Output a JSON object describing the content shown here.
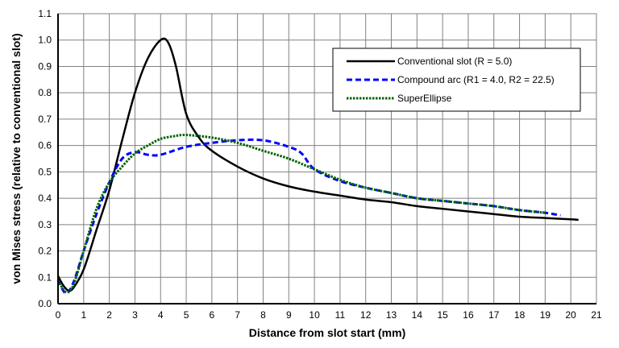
{
  "chart_data": {
    "type": "line",
    "title": "",
    "xlabel": "Distance from slot start (mm)",
    "ylabel": "von Mises stress (relative to conventional slot)",
    "xlim": [
      0,
      21
    ],
    "ylim": [
      0,
      1.1
    ],
    "xticks": [
      "0",
      "1",
      "2",
      "3",
      "4",
      "5",
      "6",
      "7",
      "8",
      "9",
      "10",
      "11",
      "12",
      "13",
      "14",
      "15",
      "16",
      "17",
      "18",
      "19",
      "20",
      "21"
    ],
    "yticks": [
      "0.0",
      "0.1",
      "0.2",
      "0.3",
      "0.4",
      "0.5",
      "0.6",
      "0.7",
      "0.8",
      "0.9",
      "1.0",
      "1.1"
    ],
    "grid": true,
    "legend_position": "top-right",
    "series": [
      {
        "name": "Conventional slot (R = 5.0)",
        "color": "#000000",
        "style": "solid",
        "x": [
          0,
          0.2,
          0.4,
          0.6,
          1,
          1.5,
          2,
          2.5,
          3,
          3.5,
          4,
          4.3,
          4.6,
          5,
          5.5,
          6,
          7,
          8,
          9,
          10,
          11,
          12,
          13,
          14,
          15,
          16,
          17,
          18,
          19,
          20,
          20.3
        ],
        "y": [
          0.105,
          0.07,
          0.05,
          0.06,
          0.13,
          0.28,
          0.43,
          0.62,
          0.8,
          0.93,
          1.0,
          0.99,
          0.9,
          0.72,
          0.63,
          0.58,
          0.52,
          0.475,
          0.445,
          0.425,
          0.41,
          0.395,
          0.385,
          0.37,
          0.36,
          0.35,
          0.34,
          0.33,
          0.325,
          0.32,
          0.318
        ]
      },
      {
        "name": "Compound arc (R1 = 4.0, R2 = 22.5)",
        "color": "#0000ff",
        "style": "dashed",
        "x": [
          0,
          0.3,
          0.6,
          1,
          1.5,
          2,
          2.5,
          3,
          3.5,
          4,
          5,
          6,
          7,
          8,
          9,
          9.5,
          10,
          11,
          12,
          13,
          14,
          15,
          16,
          17,
          18,
          19,
          19.6
        ],
        "y": [
          0.09,
          0.04,
          0.08,
          0.2,
          0.34,
          0.46,
          0.55,
          0.575,
          0.565,
          0.565,
          0.595,
          0.61,
          0.62,
          0.62,
          0.595,
          0.57,
          0.51,
          0.465,
          0.44,
          0.42,
          0.4,
          0.39,
          0.38,
          0.37,
          0.355,
          0.345,
          0.335
        ]
      },
      {
        "name": "SuperEllipse",
        "color": "#006400",
        "style": "dotted",
        "x": [
          0,
          0.3,
          0.6,
          1,
          1.5,
          2,
          2.5,
          3,
          3.5,
          4,
          4.5,
          5,
          6,
          7,
          8,
          9,
          10,
          11,
          12,
          13,
          14,
          15,
          16,
          17,
          18,
          19
        ],
        "y": [
          0.09,
          0.045,
          0.07,
          0.2,
          0.36,
          0.46,
          0.52,
          0.57,
          0.6,
          0.625,
          0.635,
          0.64,
          0.63,
          0.61,
          0.58,
          0.55,
          0.51,
          0.47,
          0.44,
          0.42,
          0.4,
          0.39,
          0.38,
          0.37,
          0.355,
          0.345
        ]
      }
    ]
  }
}
